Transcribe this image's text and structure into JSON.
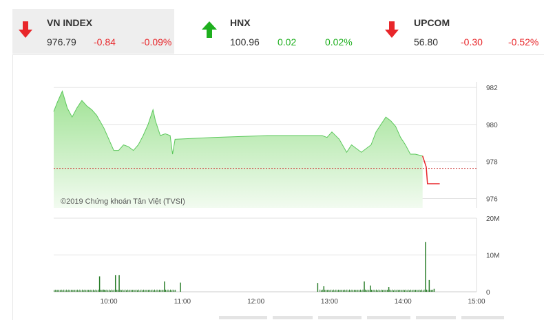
{
  "tickers": [
    {
      "name": "VN INDEX",
      "value": "976.79",
      "change": "-0.84",
      "pct": "-0.09%",
      "dir": "down"
    },
    {
      "name": "HNX",
      "value": "100.96",
      "change": "0.02",
      "pct": "0.02%",
      "dir": "up"
    },
    {
      "name": "UPCOM",
      "value": "56.80",
      "change": "-0.30",
      "pct": "-0.52%",
      "dir": "down"
    }
  ],
  "colors": {
    "down": "#e8262a",
    "up": "#1eaf1e",
    "area_line": "#5cc85c",
    "area_fill": "#b9ecb1",
    "reference": "#cc3333",
    "volume": "#2a7d2a"
  },
  "watermark": "©2019 Chứng khoán Tân Việt (TVSI)",
  "chart_data": [
    {
      "type": "area",
      "x_unit": "minutes since 09:00",
      "xlim": [
        15,
        360
      ],
      "ylim": [
        975.5,
        982.3
      ],
      "ytick_values": [
        976,
        978,
        980,
        982
      ],
      "ytick_labels": [
        "976",
        "978",
        "980",
        "982"
      ],
      "reference_value": 977.63,
      "series": [
        {
          "values": [
            [
              15,
              980.7
            ],
            [
              18,
              981.2
            ],
            [
              22,
              981.8
            ],
            [
              26,
              980.9
            ],
            [
              30,
              980.4
            ],
            [
              34,
              980.9
            ],
            [
              38,
              981.3
            ],
            [
              42,
              981.0
            ],
            [
              46,
              980.8
            ],
            [
              50,
              980.5
            ],
            [
              56,
              979.8
            ],
            [
              60,
              979.2
            ],
            [
              64,
              978.6
            ],
            [
              68,
              978.6
            ],
            [
              72,
              978.9
            ],
            [
              76,
              978.8
            ],
            [
              80,
              978.6
            ],
            [
              84,
              978.9
            ],
            [
              88,
              979.4
            ],
            [
              92,
              980.0
            ],
            [
              96,
              980.8
            ],
            [
              98,
              980.2
            ],
            [
              102,
              979.4
            ],
            [
              106,
              979.5
            ],
            [
              110,
              979.4
            ],
            [
              112,
              978.4
            ],
            [
              114,
              979.2
            ],
            [
              145,
              979.3
            ],
            [
              190,
              979.4
            ],
            [
              234,
              979.4
            ],
            [
              238,
              979.3
            ],
            [
              242,
              979.6
            ],
            [
              248,
              979.2
            ],
            [
              254,
              978.5
            ],
            [
              258,
              978.9
            ],
            [
              262,
              978.7
            ],
            [
              266,
              978.5
            ],
            [
              270,
              978.7
            ],
            [
              274,
              978.9
            ],
            [
              278,
              979.6
            ],
            [
              282,
              980.0
            ],
            [
              286,
              980.4
            ],
            [
              290,
              980.2
            ],
            [
              294,
              979.9
            ],
            [
              298,
              979.3
            ],
            [
              302,
              978.9
            ],
            [
              306,
              978.4
            ],
            [
              310,
              978.4
            ],
            [
              316,
              978.3
            ],
            [
              319,
              977.7
            ],
            [
              320,
              976.8
            ],
            [
              330,
              976.8
            ]
          ]
        }
      ],
      "xtick_labels": [
        "10:00",
        "11:00",
        "12:00",
        "13:00",
        "14:00",
        "15:00"
      ],
      "xtick_values": [
        60,
        120,
        180,
        240,
        300,
        360
      ]
    },
    {
      "type": "bar",
      "ylim": [
        0,
        20
      ],
      "ytick_values": [
        0,
        10,
        20
      ],
      "ytick_labels": [
        "0",
        "10M",
        "20M"
      ],
      "bars": [
        [
          52,
          4.2
        ],
        [
          55,
          0.6
        ],
        [
          65,
          4.5
        ],
        [
          68,
          4.5
        ],
        [
          105,
          2.8
        ],
        [
          118,
          2.5
        ],
        [
          230,
          2.4
        ],
        [
          235,
          1.5
        ],
        [
          268,
          2.8
        ],
        [
          273,
          1.7
        ],
        [
          288,
          1.3
        ],
        [
          318,
          13.5
        ],
        [
          321,
          3.2
        ],
        [
          325,
          0.8
        ]
      ],
      "baseline_range": [
        15,
        325
      ],
      "baseline_value": 0.6
    }
  ]
}
